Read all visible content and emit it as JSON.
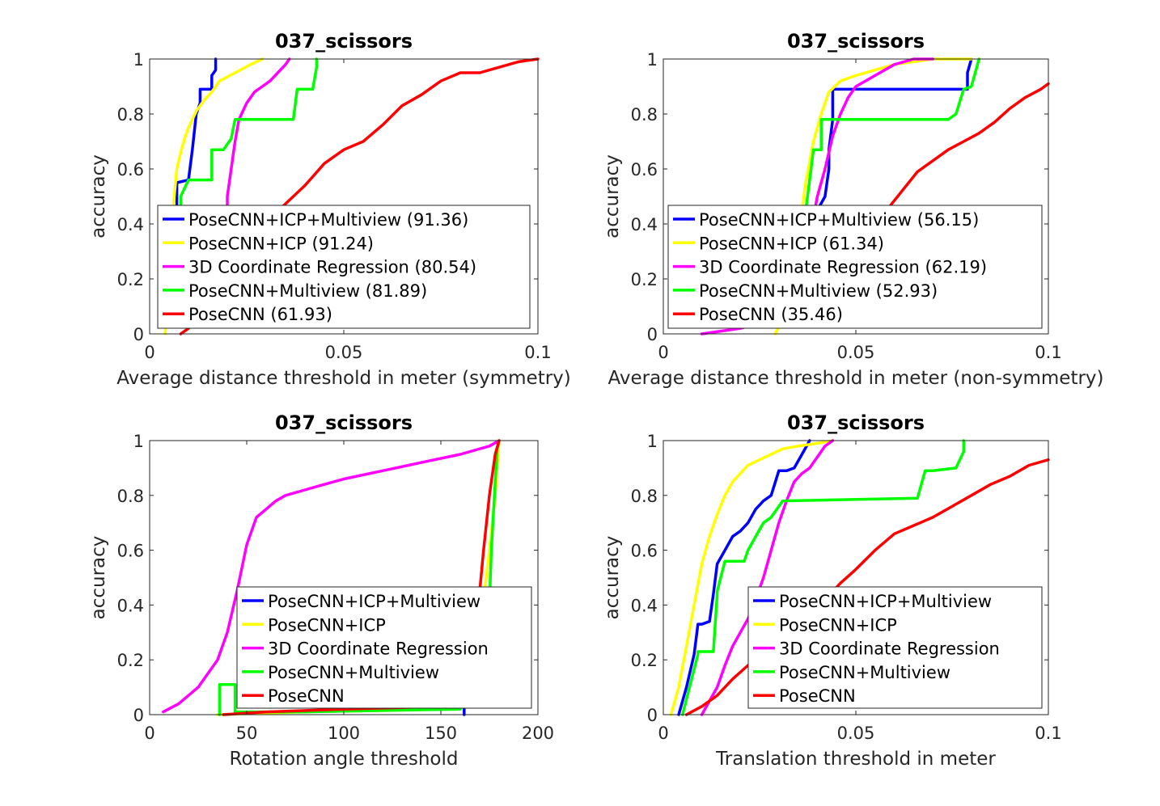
{
  "chart_data": [
    {
      "type": "line",
      "title": "037_scissors",
      "xlabel": "Average distance threshold in meter (symmetry)",
      "ylabel": "accuracy",
      "xlim": [
        0,
        0.1
      ],
      "ylim": [
        0,
        1
      ],
      "xticks": [
        "0",
        "0.05",
        "0.1"
      ],
      "yticks": [
        "0",
        "0.2",
        "0.4",
        "0.6",
        "0.8",
        "1"
      ],
      "legend_position": "bottom-left",
      "series": [
        {
          "name": "PoseCNN+ICP+Multiview (91.36)",
          "color": "#0000ff",
          "x": [
            0.007,
            0.007,
            0.01,
            0.011,
            0.012,
            0.013,
            0.013,
            0.016,
            0.016,
            0.017,
            0.017
          ],
          "y": [
            0.45,
            0.55,
            0.56,
            0.67,
            0.8,
            0.84,
            0.89,
            0.89,
            0.94,
            0.96,
            1.0
          ]
        },
        {
          "name": "PoseCNN+ICP (91.24)",
          "color": "#ffff00",
          "x": [
            0.004,
            0.005,
            0.006,
            0.007,
            0.008,
            0.009,
            0.01,
            0.012,
            0.014,
            0.016,
            0.018,
            0.022,
            0.026,
            0.029
          ],
          "y": [
            0.0,
            0.2,
            0.45,
            0.6,
            0.66,
            0.71,
            0.75,
            0.81,
            0.85,
            0.88,
            0.92,
            0.95,
            0.98,
            1.0
          ]
        },
        {
          "name": "3D Coordinate Regression (80.54)",
          "color": "#ff00ff",
          "x": [
            0.02,
            0.02,
            0.021,
            0.022,
            0.023,
            0.025,
            0.027,
            0.029,
            0.031,
            0.033,
            0.035,
            0.036
          ],
          "y": [
            0.4,
            0.5,
            0.6,
            0.7,
            0.78,
            0.84,
            0.88,
            0.9,
            0.92,
            0.95,
            0.98,
            1.0
          ]
        },
        {
          "name": "PoseCNN+Multiview (81.89)",
          "color": "#00ff00",
          "x": [
            0.008,
            0.008,
            0.01,
            0.01,
            0.011,
            0.016,
            0.016,
            0.019,
            0.021,
            0.022,
            0.023,
            0.037,
            0.038,
            0.039,
            0.042,
            0.043,
            0.043
          ],
          "y": [
            0.4,
            0.5,
            0.56,
            0.56,
            0.56,
            0.56,
            0.67,
            0.67,
            0.71,
            0.78,
            0.78,
            0.78,
            0.89,
            0.89,
            0.89,
            0.97,
            1.0
          ]
        },
        {
          "name": "PoseCNN (61.93)",
          "color": "#ff0000",
          "x": [
            0.008,
            0.01,
            0.03,
            0.034,
            0.04,
            0.045,
            0.05,
            0.055,
            0.06,
            0.065,
            0.07,
            0.075,
            0.08,
            0.085,
            0.09,
            0.095,
            0.1
          ],
          "y": [
            0.0,
            0.02,
            0.4,
            0.46,
            0.54,
            0.62,
            0.67,
            0.7,
            0.76,
            0.83,
            0.87,
            0.92,
            0.95,
            0.95,
            0.97,
            0.99,
            1.0
          ]
        }
      ]
    },
    {
      "type": "line",
      "title": "037_scissors",
      "xlabel": "Average distance threshold in meter (non-symmetry)",
      "ylabel": "accuracy",
      "xlim": [
        0,
        0.1
      ],
      "ylim": [
        0,
        1
      ],
      "xticks": [
        "0",
        "0.05",
        "0.1"
      ],
      "yticks": [
        "0",
        "0.2",
        "0.4",
        "0.6",
        "0.8",
        "1"
      ],
      "legend_position": "bottom-left",
      "series": [
        {
          "name": "PoseCNN+ICP+Multiview (56.15)",
          "color": "#0000ff",
          "x": [
            0.04,
            0.042,
            0.043,
            0.043,
            0.044,
            0.044,
            0.079,
            0.079,
            0.08
          ],
          "y": [
            0.45,
            0.5,
            0.6,
            0.67,
            0.78,
            0.89,
            0.89,
            0.95,
            1.0
          ]
        },
        {
          "name": "PoseCNN+ICP (61.34)",
          "color": "#ffff00",
          "x": [
            0.029,
            0.031,
            0.033,
            0.035,
            0.037,
            0.039,
            0.041,
            0.043,
            0.046,
            0.05,
            0.055,
            0.06,
            0.065,
            0.07,
            0.075,
            0.08
          ],
          "y": [
            0.0,
            0.05,
            0.15,
            0.35,
            0.55,
            0.7,
            0.8,
            0.88,
            0.92,
            0.94,
            0.96,
            0.98,
            0.99,
            1.0,
            1.0,
            1.0
          ]
        },
        {
          "name": "3D Coordinate Regression (62.19)",
          "color": "#ff00ff",
          "x": [
            0.01,
            0.02,
            0.03,
            0.036,
            0.038,
            0.04,
            0.042,
            0.044,
            0.046,
            0.048,
            0.05,
            0.055,
            0.06,
            0.065,
            0.07
          ],
          "y": [
            0.0,
            0.02,
            0.06,
            0.2,
            0.35,
            0.5,
            0.6,
            0.72,
            0.8,
            0.86,
            0.9,
            0.94,
            0.98,
            1.0,
            1.0
          ]
        },
        {
          "name": "PoseCNN+Multiview (52.93)",
          "color": "#00ff00",
          "x": [
            0.037,
            0.038,
            0.039,
            0.041,
            0.041,
            0.074,
            0.076,
            0.078,
            0.08,
            0.081,
            0.082
          ],
          "y": [
            0.45,
            0.56,
            0.67,
            0.67,
            0.78,
            0.78,
            0.8,
            0.89,
            0.9,
            0.95,
            1.0
          ]
        },
        {
          "name": "PoseCNN (35.46)",
          "color": "#ff0000",
          "x": [
            0.058,
            0.062,
            0.066,
            0.07,
            0.074,
            0.078,
            0.082,
            0.086,
            0.09,
            0.094,
            0.098,
            0.1
          ],
          "y": [
            0.45,
            0.52,
            0.59,
            0.63,
            0.67,
            0.7,
            0.73,
            0.77,
            0.82,
            0.86,
            0.89,
            0.91
          ]
        }
      ]
    },
    {
      "type": "line",
      "title": "037_scissors",
      "xlabel": "Rotation angle threshold",
      "ylabel": "accuracy",
      "xlim": [
        0,
        200
      ],
      "ylim": [
        0,
        1
      ],
      "xticks": [
        "0",
        "50",
        "100",
        "150",
        "200"
      ],
      "yticks": [
        "0",
        "0.2",
        "0.4",
        "0.6",
        "0.8",
        "1"
      ],
      "legend_position": "bottom-right",
      "series": [
        {
          "name": "PoseCNN+ICP+Multiview",
          "color": "#0000ff",
          "x": [
            162,
            162
          ],
          "y": [
            0.0,
            0.02
          ]
        },
        {
          "name": "PoseCNN+ICP",
          "color": "#ffff00",
          "x": [
            35,
            80,
            120,
            150,
            170,
            175,
            178,
            180
          ],
          "y": [
            0.0,
            0.01,
            0.015,
            0.02,
            0.3,
            0.6,
            0.8,
            1.0
          ]
        },
        {
          "name": "3D Coordinate Regression",
          "color": "#ff00ff",
          "x": [
            7,
            15,
            25,
            35,
            40,
            45,
            50,
            55,
            60,
            65,
            70,
            80,
            90,
            100,
            120,
            140,
            160,
            175,
            180
          ],
          "y": [
            0.01,
            0.04,
            0.1,
            0.2,
            0.3,
            0.45,
            0.62,
            0.72,
            0.75,
            0.78,
            0.8,
            0.82,
            0.84,
            0.86,
            0.89,
            0.92,
            0.95,
            0.98,
            1.0
          ]
        },
        {
          "name": "PoseCNN+Multiview",
          "color": "#00ff00",
          "x": [
            36,
            36,
            44,
            44,
            80,
            160,
            175,
            176,
            178,
            179,
            180
          ],
          "y": [
            0.0,
            0.11,
            0.11,
            0.01,
            0.01,
            0.02,
            0.4,
            0.6,
            0.85,
            0.97,
            1.0
          ]
        },
        {
          "name": "PoseCNN",
          "color": "#ff0000",
          "x": [
            38,
            60,
            100,
            150,
            165,
            170,
            172,
            175,
            178,
            180
          ],
          "y": [
            0.0,
            0.01,
            0.02,
            0.03,
            0.2,
            0.45,
            0.6,
            0.8,
            0.95,
            1.0
          ]
        }
      ]
    },
    {
      "type": "line",
      "title": "037_scissors",
      "xlabel": "Translation threshold in meter",
      "ylabel": "accuracy",
      "xlim": [
        0,
        0.1
      ],
      "ylim": [
        0,
        1
      ],
      "xticks": [
        "0",
        "0.05",
        "0.1"
      ],
      "yticks": [
        "0",
        "0.2",
        "0.4",
        "0.6",
        "0.8",
        "1"
      ],
      "legend_position": "bottom-right",
      "series": [
        {
          "name": "PoseCNN+ICP+Multiview",
          "color": "#0000ff",
          "x": [
            0.004,
            0.006,
            0.008,
            0.009,
            0.01,
            0.012,
            0.013,
            0.014,
            0.016,
            0.018,
            0.02,
            0.022,
            0.024,
            0.026,
            0.028,
            0.03,
            0.032,
            0.034,
            0.036,
            0.038
          ],
          "y": [
            0.0,
            0.1,
            0.22,
            0.33,
            0.33,
            0.34,
            0.44,
            0.55,
            0.6,
            0.65,
            0.67,
            0.7,
            0.75,
            0.78,
            0.8,
            0.89,
            0.89,
            0.9,
            0.95,
            1.0
          ]
        },
        {
          "name": "PoseCNN+ICP",
          "color": "#ffff00",
          "x": [
            0.002,
            0.004,
            0.006,
            0.008,
            0.01,
            0.012,
            0.014,
            0.016,
            0.018,
            0.02,
            0.022,
            0.025,
            0.028,
            0.031,
            0.035,
            0.04,
            0.044
          ],
          "y": [
            0.0,
            0.1,
            0.25,
            0.4,
            0.55,
            0.65,
            0.73,
            0.8,
            0.85,
            0.88,
            0.91,
            0.93,
            0.95,
            0.97,
            0.98,
            0.99,
            1.0
          ]
        },
        {
          "name": "3D Coordinate Regression",
          "color": "#ff00ff",
          "x": [
            0.01,
            0.012,
            0.014,
            0.016,
            0.018,
            0.02,
            0.022,
            0.024,
            0.026,
            0.028,
            0.03,
            0.032,
            0.034,
            0.036,
            0.038,
            0.04,
            0.042,
            0.044
          ],
          "y": [
            0.0,
            0.05,
            0.1,
            0.18,
            0.25,
            0.3,
            0.35,
            0.42,
            0.5,
            0.6,
            0.7,
            0.78,
            0.85,
            0.88,
            0.9,
            0.94,
            0.98,
            1.0
          ]
        },
        {
          "name": "PoseCNN+Multiview",
          "color": "#00ff00",
          "x": [
            0.005,
            0.007,
            0.009,
            0.009,
            0.013,
            0.014,
            0.014,
            0.016,
            0.017,
            0.021,
            0.022,
            0.024,
            0.026,
            0.028,
            0.03,
            0.031,
            0.066,
            0.068,
            0.07,
            0.076,
            0.078,
            0.078
          ],
          "y": [
            0.0,
            0.11,
            0.22,
            0.23,
            0.23,
            0.44,
            0.45,
            0.56,
            0.56,
            0.56,
            0.6,
            0.65,
            0.7,
            0.72,
            0.76,
            0.78,
            0.79,
            0.89,
            0.89,
            0.9,
            0.96,
            1.0
          ]
        },
        {
          "name": "PoseCNN",
          "color": "#ff0000",
          "x": [
            0.006,
            0.01,
            0.014,
            0.018,
            0.022,
            0.026,
            0.03,
            0.034,
            0.038,
            0.042,
            0.046,
            0.05,
            0.055,
            0.06,
            0.065,
            0.07,
            0.075,
            0.08,
            0.085,
            0.09,
            0.095,
            0.1
          ],
          "y": [
            0.0,
            0.03,
            0.07,
            0.13,
            0.18,
            0.21,
            0.27,
            0.33,
            0.38,
            0.42,
            0.48,
            0.53,
            0.6,
            0.66,
            0.69,
            0.72,
            0.76,
            0.8,
            0.84,
            0.87,
            0.91,
            0.93
          ]
        }
      ]
    }
  ]
}
